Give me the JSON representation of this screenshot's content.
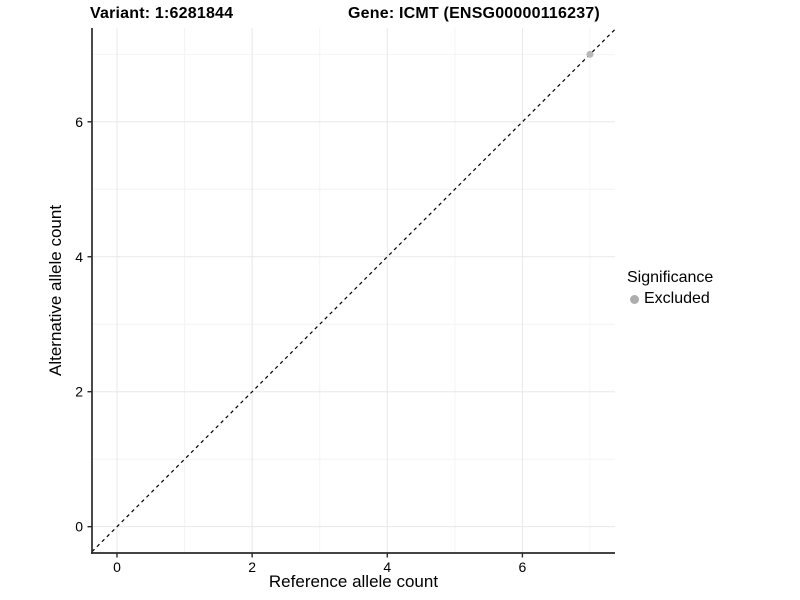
{
  "header": {
    "variant_title": "Variant: 1:6281844",
    "gene_title": "Gene: ICMT (ENSG00000116237)"
  },
  "chart_data": {
    "type": "scatter",
    "title": "",
    "xlabel": "Reference allele count",
    "ylabel": "Alternative allele count",
    "xlim": [
      -0.37,
      7.37
    ],
    "ylim": [
      -0.39,
      7.39
    ],
    "x_ticks": [
      0,
      2,
      4,
      6
    ],
    "y_ticks": [
      0,
      2,
      4,
      6
    ],
    "x_minor_gridlines": [
      1,
      3,
      5,
      7
    ],
    "y_minor_gridlines": [
      1,
      3,
      5,
      7
    ],
    "grid": true,
    "reference_line": {
      "type": "identity",
      "slope": 1,
      "intercept": 0,
      "style": "dashed",
      "color": "#000000"
    },
    "series": [
      {
        "name": "Excluded",
        "color": "#b8b8b8",
        "points": [
          [
            7,
            7
          ]
        ]
      }
    ],
    "legend": {
      "title": "Significance",
      "position": "right",
      "items": [
        {
          "label": "Excluded",
          "color": "#aeaeae"
        }
      ]
    },
    "colors": {
      "axis_line": "#2a2a2a",
      "tick_mark": "#2a2a2a",
      "grid_major": "#e8e8e8",
      "grid_minor": "#f4f4f4",
      "background": "#ffffff"
    }
  }
}
